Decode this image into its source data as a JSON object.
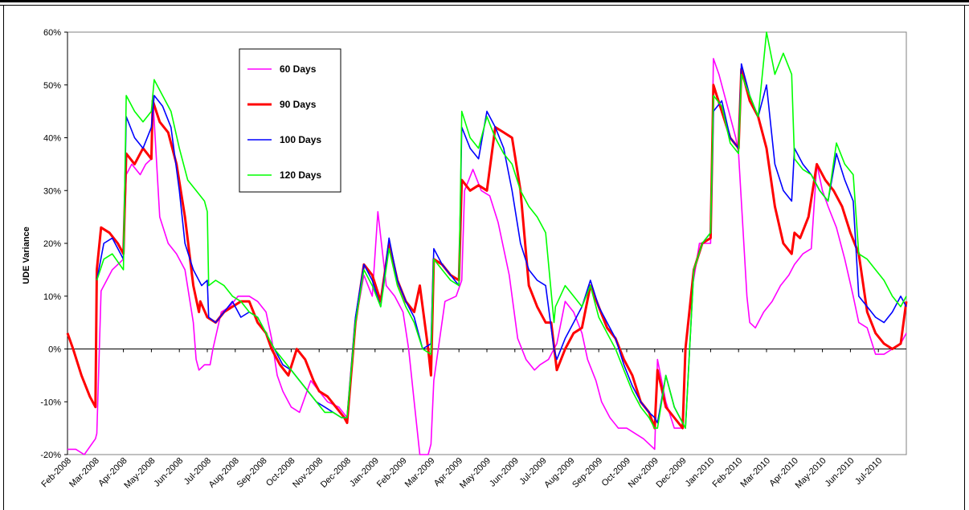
{
  "chart_data": {
    "type": "line",
    "title": "",
    "xlabel": "",
    "ylabel": "UDE Variance",
    "ylim": [
      -0.2,
      0.6
    ],
    "yticks": [
      -0.2,
      -0.1,
      0,
      0.1,
      0.2,
      0.3,
      0.4,
      0.5,
      0.6
    ],
    "ytick_labels": [
      "-20%",
      "-10%",
      "0%",
      "10%",
      "20%",
      "30%",
      "40%",
      "50%",
      "60%"
    ],
    "x_categories": [
      "Feb-2008",
      "Mar-2008",
      "Apr-2008",
      "May-2008",
      "Jun-2008",
      "Jul-2008",
      "Aug-2008",
      "Sep-2008",
      "Oct-2008",
      "Nov-2008",
      "Dec-2008",
      "Jan-2009",
      "Feb-2009",
      "Mar-2009",
      "Apr-2009",
      "May-2009",
      "Jun-2009",
      "Jul-2009",
      "Aug-2009",
      "Sep-2009",
      "Oct-2009",
      "Nov-2009",
      "Dec-2009",
      "Jan-2010",
      "Feb-2010",
      "Mar-2010",
      "Apr-2010",
      "May-2010",
      "Jun-2010",
      "Jul-2010"
    ],
    "x_range_months": [
      0,
      30
    ],
    "grid": false,
    "legend_placement": "top-left inside plot",
    "series": [
      {
        "name": "60 Days",
        "color": "#ff00ff",
        "x": [
          0,
          0.3,
          0.6,
          1.0,
          1.05,
          1.2,
          1.6,
          2.0,
          2.1,
          2.3,
          2.6,
          2.8,
          3.0,
          3.05,
          3.3,
          3.6,
          3.9,
          4.2,
          4.5,
          4.6,
          4.7,
          4.9,
          5.1,
          5.2,
          5.5,
          5.8,
          6.1,
          6.5,
          6.8,
          7.1,
          7.3,
          7.5,
          7.7,
          7.9,
          8.0,
          8.3,
          8.7,
          9.0,
          9.3,
          9.7,
          10.0,
          10.3,
          10.6,
          10.9,
          11.1,
          11.4,
          11.7,
          12.0,
          12.2,
          12.4,
          12.6,
          12.9,
          13.0,
          13.1,
          13.5,
          13.9,
          14.1,
          14.2,
          14.5,
          14.8,
          15.1,
          15.4,
          15.8,
          16.1,
          16.4,
          16.7,
          16.9,
          17.2,
          17.5,
          17.8,
          18.1,
          18.4,
          18.6,
          18.9,
          19.1,
          19.4,
          19.7,
          20.0,
          20.3,
          20.6,
          21.0,
          21.1,
          21.4,
          21.7,
          22.0,
          22.1,
          22.3,
          22.6,
          22.9,
          23.0,
          23.1,
          23.3,
          23.6,
          23.9,
          24.0,
          24.3,
          24.4,
          24.6,
          24.9,
          25.2,
          25.5,
          25.8,
          26.0,
          26.3,
          26.6,
          26.8,
          27.0,
          27.2,
          27.5,
          27.8,
          28.1,
          28.3,
          28.6,
          28.9,
          29.2,
          29.5,
          29.8,
          30.0
        ],
        "values": [
          -0.19,
          -0.19,
          -0.2,
          -0.17,
          -0.16,
          0.11,
          0.15,
          0.17,
          0.33,
          0.35,
          0.33,
          0.35,
          0.36,
          0.48,
          0.25,
          0.2,
          0.18,
          0.15,
          0.05,
          -0.02,
          -0.04,
          -0.03,
          -0.03,
          0.0,
          0.07,
          0.08,
          0.1,
          0.1,
          0.09,
          0.07,
          0.02,
          -0.05,
          -0.08,
          -0.1,
          -0.11,
          -0.12,
          -0.06,
          -0.08,
          -0.1,
          -0.11,
          -0.13,
          0.05,
          0.14,
          0.1,
          0.26,
          0.12,
          0.1,
          0.07,
          0.0,
          -0.1,
          -0.2,
          -0.2,
          -0.18,
          -0.06,
          0.09,
          0.1,
          0.13,
          0.3,
          0.34,
          0.3,
          0.29,
          0.24,
          0.14,
          0.02,
          -0.02,
          -0.04,
          -0.03,
          -0.02,
          0.01,
          0.09,
          0.07,
          0.03,
          -0.02,
          -0.06,
          -0.1,
          -0.13,
          -0.15,
          -0.15,
          -0.16,
          -0.17,
          -0.19,
          -0.02,
          -0.1,
          -0.15,
          -0.15,
          0.0,
          0.1,
          0.2,
          0.2,
          0.2,
          0.55,
          0.52,
          0.46,
          0.4,
          0.37,
          0.1,
          0.05,
          0.04,
          0.07,
          0.09,
          0.12,
          0.14,
          0.16,
          0.18,
          0.19,
          0.35,
          0.3,
          0.27,
          0.23,
          0.17,
          0.1,
          0.05,
          0.04,
          -0.01,
          -0.01,
          0.0,
          0.01,
          0.03
        ]
      },
      {
        "name": "90 Days",
        "color": "#ff0000",
        "x": [
          0,
          0.2,
          0.5,
          0.8,
          1.0,
          1.05,
          1.2,
          1.5,
          1.8,
          2.0,
          2.1,
          2.4,
          2.7,
          3.0,
          3.05,
          3.3,
          3.6,
          3.9,
          4.2,
          4.5,
          4.7,
          4.75,
          5.0,
          5.3,
          5.6,
          5.9,
          6.2,
          6.5,
          6.8,
          7.1,
          7.3,
          7.6,
          7.9,
          8.2,
          8.5,
          8.8,
          9.0,
          9.3,
          9.6,
          9.9,
          10.0,
          10.3,
          10.6,
          10.9,
          11.2,
          11.5,
          11.8,
          12.1,
          12.4,
          12.6,
          12.9,
          13.0,
          13.1,
          13.4,
          13.7,
          14.0,
          14.1,
          14.4,
          14.7,
          15.0,
          15.3,
          15.6,
          15.9,
          16.2,
          16.5,
          16.8,
          17.1,
          17.3,
          17.5,
          17.8,
          18.1,
          18.4,
          18.7,
          19.0,
          19.3,
          19.6,
          19.9,
          20.2,
          20.5,
          20.8,
          21.0,
          21.1,
          21.4,
          21.7,
          22.0,
          22.1,
          22.4,
          22.7,
          23.0,
          23.1,
          23.4,
          23.7,
          24.0,
          24.1,
          24.4,
          24.7,
          25.0,
          25.3,
          25.6,
          25.9,
          26.0,
          26.2,
          26.5,
          26.8,
          27.1,
          27.4,
          27.7,
          28.0,
          28.3,
          28.6,
          28.9,
          29.2,
          29.5,
          29.8,
          30.0
        ],
        "values": [
          0.03,
          0.0,
          -0.05,
          -0.09,
          -0.11,
          0.15,
          0.23,
          0.22,
          0.2,
          0.18,
          0.37,
          0.35,
          0.38,
          0.36,
          0.47,
          0.43,
          0.41,
          0.35,
          0.25,
          0.12,
          0.07,
          0.09,
          0.06,
          0.05,
          0.07,
          0.08,
          0.09,
          0.09,
          0.05,
          0.03,
          0.0,
          -0.03,
          -0.05,
          0.0,
          -0.02,
          -0.06,
          -0.08,
          -0.09,
          -0.11,
          -0.13,
          -0.14,
          0.05,
          0.16,
          0.14,
          0.09,
          0.2,
          0.13,
          0.09,
          0.07,
          0.12,
          0.0,
          -0.05,
          0.17,
          0.16,
          0.14,
          0.13,
          0.32,
          0.3,
          0.31,
          0.3,
          0.42,
          0.41,
          0.4,
          0.3,
          0.12,
          0.08,
          0.05,
          0.05,
          -0.04,
          0.0,
          0.03,
          0.04,
          0.12,
          0.08,
          0.04,
          0.02,
          -0.02,
          -0.05,
          -0.1,
          -0.12,
          -0.15,
          -0.04,
          -0.11,
          -0.13,
          -0.15,
          0.0,
          0.15,
          0.2,
          0.21,
          0.5,
          0.45,
          0.4,
          0.38,
          0.53,
          0.47,
          0.44,
          0.38,
          0.27,
          0.2,
          0.18,
          0.22,
          0.21,
          0.25,
          0.35,
          0.32,
          0.3,
          0.27,
          0.22,
          0.18,
          0.07,
          0.03,
          0.01,
          0.0,
          0.01,
          0.09
        ]
      },
      {
        "name": "100 Days",
        "color": "#0000ff",
        "x": [
          0,
          1.0,
          1.05,
          1.3,
          1.6,
          2.0,
          2.1,
          2.4,
          2.7,
          3.0,
          3.1,
          3.4,
          3.7,
          4.0,
          4.2,
          4.5,
          4.8,
          5.0,
          5.05,
          5.3,
          5.6,
          5.9,
          6.2,
          6.5,
          6.8,
          7.1,
          7.4,
          7.7,
          8.0,
          8.3,
          8.6,
          8.9,
          9.2,
          9.5,
          9.8,
          10.0,
          10.3,
          10.6,
          10.9,
          11.2,
          11.5,
          11.8,
          12.1,
          12.4,
          12.7,
          13.0,
          13.1,
          13.4,
          13.7,
          14.0,
          14.1,
          14.4,
          14.7,
          15.0,
          15.3,
          15.6,
          15.9,
          16.2,
          16.5,
          16.8,
          17.1,
          17.4,
          17.5,
          17.8,
          18.1,
          18.4,
          18.7,
          19.0,
          19.3,
          19.6,
          19.9,
          20.2,
          20.5,
          20.8,
          21.0,
          21.1,
          21.4,
          21.7,
          22.0,
          22.1,
          22.4,
          22.7,
          23.0,
          23.1,
          23.4,
          23.7,
          24.0,
          24.1,
          24.4,
          24.7,
          25.0,
          25.3,
          25.6,
          25.9,
          26.0,
          26.3,
          26.6,
          26.9,
          27.2,
          27.5,
          27.8,
          28.1,
          28.3,
          28.6,
          28.9,
          29.2,
          29.5,
          29.8,
          30.0
        ],
        "values": [
          null,
          null,
          0.13,
          0.2,
          0.21,
          0.17,
          0.44,
          0.4,
          0.38,
          0.42,
          0.48,
          0.46,
          0.42,
          0.3,
          0.2,
          0.15,
          0.12,
          0.13,
          0.06,
          0.05,
          0.07,
          0.09,
          0.06,
          0.07,
          0.06,
          0.03,
          0.0,
          -0.03,
          -0.04,
          -0.06,
          -0.08,
          -0.1,
          -0.11,
          -0.12,
          -0.13,
          -0.13,
          0.06,
          0.16,
          0.13,
          0.08,
          0.21,
          0.13,
          0.09,
          0.06,
          0.0,
          0.01,
          0.19,
          0.16,
          0.14,
          0.12,
          0.42,
          0.38,
          0.36,
          0.45,
          0.42,
          0.38,
          0.3,
          0.2,
          0.15,
          0.13,
          0.12,
          0.0,
          -0.02,
          0.02,
          0.05,
          0.08,
          0.13,
          0.08,
          0.05,
          0.02,
          -0.03,
          -0.07,
          -0.1,
          -0.12,
          -0.13,
          -0.14,
          -0.05,
          -0.11,
          -0.14,
          -0.15,
          0.15,
          0.2,
          0.22,
          0.45,
          0.47,
          0.4,
          0.38,
          0.54,
          0.48,
          0.44,
          0.5,
          0.35,
          0.3,
          0.28,
          0.38,
          0.35,
          0.33,
          0.3,
          0.28,
          0.37,
          0.32,
          0.28,
          0.1,
          0.08,
          0.06,
          0.05,
          0.07,
          0.1,
          0.08
        ]
      },
      {
        "name": "120 Days",
        "color": "#00ff00",
        "x": [
          0,
          1.0,
          1.05,
          1.3,
          1.6,
          2.0,
          2.1,
          2.4,
          2.7,
          3.0,
          3.1,
          3.4,
          3.7,
          4.0,
          4.3,
          4.6,
          4.9,
          5.0,
          5.05,
          5.3,
          5.6,
          5.9,
          6.2,
          6.5,
          6.8,
          7.1,
          7.4,
          7.7,
          8.0,
          8.3,
          8.6,
          8.9,
          9.2,
          9.5,
          9.8,
          10.0,
          10.3,
          10.6,
          10.9,
          11.2,
          11.5,
          11.8,
          12.1,
          12.4,
          12.7,
          13.0,
          13.1,
          13.4,
          13.7,
          14.0,
          14.1,
          14.4,
          14.7,
          15.0,
          15.3,
          15.6,
          15.9,
          16.2,
          16.5,
          16.8,
          17.1,
          17.4,
          17.45,
          17.8,
          18.1,
          18.4,
          18.7,
          19.0,
          19.3,
          19.6,
          19.9,
          20.2,
          20.5,
          20.8,
          21.0,
          21.1,
          21.4,
          21.7,
          22.0,
          22.1,
          22.4,
          22.7,
          23.0,
          23.1,
          23.4,
          23.7,
          24.0,
          24.1,
          24.4,
          24.7,
          25.0,
          25.3,
          25.6,
          25.9,
          26.0,
          26.3,
          26.6,
          26.9,
          27.2,
          27.5,
          27.8,
          28.1,
          28.3,
          28.6,
          28.9,
          29.2,
          29.5,
          29.8,
          30.0
        ],
        "values": [
          null,
          null,
          0.13,
          0.17,
          0.18,
          0.15,
          0.48,
          0.45,
          0.43,
          0.45,
          0.51,
          0.48,
          0.45,
          0.38,
          0.32,
          0.3,
          0.28,
          0.26,
          0.12,
          0.13,
          0.12,
          0.1,
          0.09,
          0.07,
          0.06,
          0.03,
          0.0,
          -0.02,
          -0.04,
          -0.06,
          -0.08,
          -0.1,
          -0.12,
          -0.12,
          -0.13,
          -0.13,
          0.05,
          0.15,
          0.12,
          0.08,
          0.19,
          0.12,
          0.08,
          0.05,
          0.0,
          -0.01,
          0.17,
          0.15,
          0.13,
          0.12,
          0.45,
          0.4,
          0.38,
          0.44,
          0.4,
          0.37,
          0.35,
          0.3,
          0.27,
          0.25,
          0.22,
          0.05,
          0.08,
          0.12,
          0.1,
          0.08,
          0.12,
          0.06,
          0.03,
          0.0,
          -0.04,
          -0.08,
          -0.11,
          -0.13,
          -0.15,
          -0.15,
          -0.05,
          -0.11,
          -0.14,
          -0.15,
          0.15,
          0.2,
          0.22,
          0.48,
          0.46,
          0.39,
          0.37,
          0.52,
          0.48,
          0.44,
          0.6,
          0.52,
          0.56,
          0.52,
          0.36,
          0.34,
          0.33,
          0.3,
          0.28,
          0.39,
          0.35,
          0.33,
          0.18,
          0.17,
          0.15,
          0.13,
          0.1,
          0.08,
          0.1
        ]
      }
    ]
  }
}
